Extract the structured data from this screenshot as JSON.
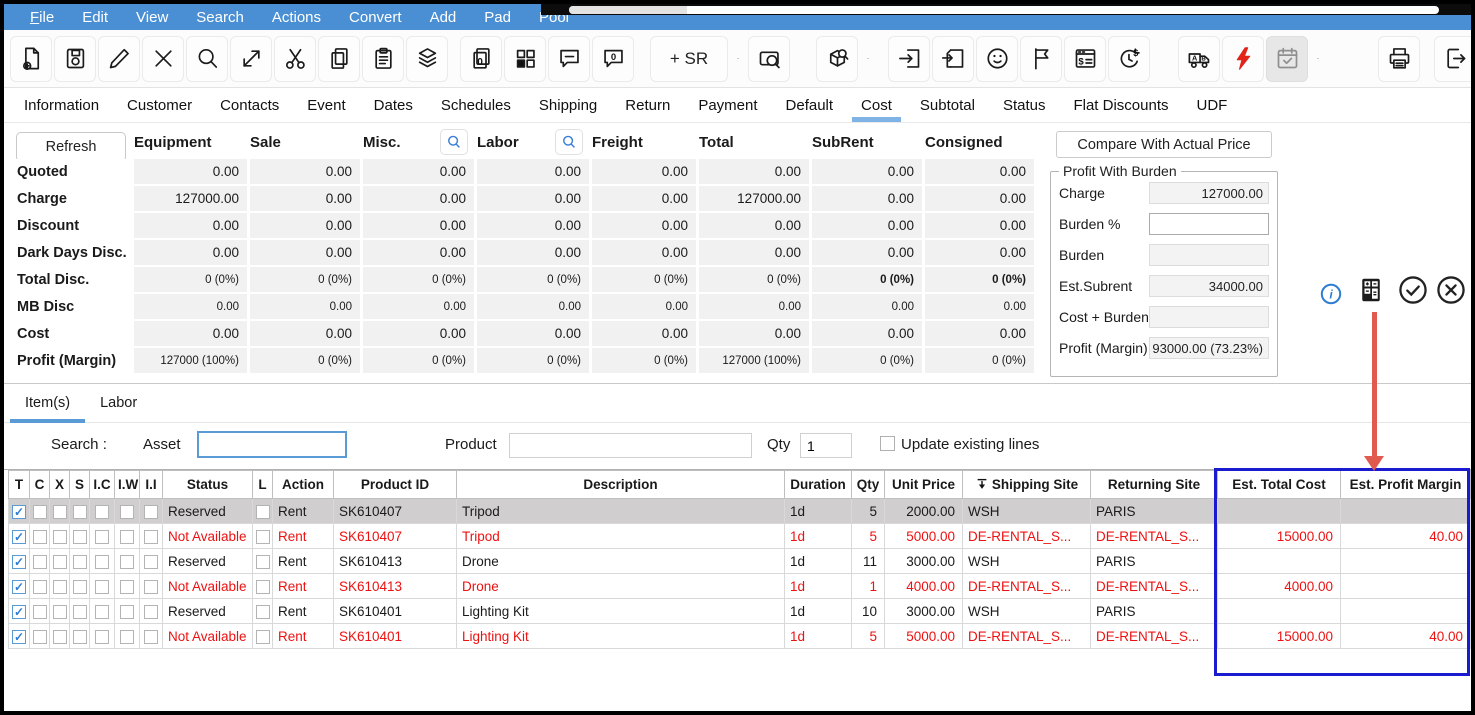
{
  "menu": {
    "items": [
      "File",
      "Edit",
      "View",
      "Search",
      "Actions",
      "Convert",
      "Add",
      "Pad",
      "Pool"
    ]
  },
  "toolbar": {
    "add_sr_label": "+ SR",
    "buttons": [
      "new-document",
      "save",
      "edit",
      "delete",
      "search",
      "expand",
      "cut",
      "copy",
      "paste",
      "layers",
      "duplicate-count",
      "layout-grid",
      "comment",
      "comment-count",
      "add-sr",
      "add-sr-chevron",
      "view-search",
      "box-search",
      "box-search-chevron",
      "return-document",
      "receive-box",
      "customer-smiley",
      "flag",
      "invoice-window",
      "time-money",
      "transfer-truck",
      "quick-lightning",
      "calendar-check",
      "calendar-chevron",
      "print",
      "exit"
    ]
  },
  "nav_tabs": {
    "items": [
      "Information",
      "Customer",
      "Contacts",
      "Event",
      "Dates",
      "Schedules",
      "Shipping",
      "Return",
      "Payment",
      "Default",
      "Cost",
      "Subtotal",
      "Status",
      "Flat Discounts",
      "UDF"
    ],
    "active": "Cost"
  },
  "cost_grid": {
    "refresh_label": "Refresh",
    "columns": [
      "Equipment",
      "Sale",
      "Misc.",
      "Labor",
      "Freight",
      "Total",
      "SubRent",
      "Consigned"
    ],
    "search_columns": [
      "Misc.",
      "Labor"
    ],
    "rows": [
      {
        "label": "Quoted",
        "values": [
          "0.00",
          "0.00",
          "0.00",
          "0.00",
          "0.00",
          "0.00",
          "0.00",
          "0.00"
        ]
      },
      {
        "label": "Charge",
        "values": [
          "127000.00",
          "0.00",
          "0.00",
          "0.00",
          "0.00",
          "127000.00",
          "0.00",
          "0.00"
        ]
      },
      {
        "label": "Discount",
        "values": [
          "0.00",
          "0.00",
          "0.00",
          "0.00",
          "0.00",
          "0.00",
          "0.00",
          "0.00"
        ]
      },
      {
        "label": "Dark Days Disc.",
        "values": [
          "0.00",
          "0.00",
          "0.00",
          "0.00",
          "0.00",
          "0.00",
          "0.00",
          "0.00"
        ]
      },
      {
        "label": "Total Disc.",
        "values": [
          "0 (0%)",
          "0 (0%)",
          "0 (0%)",
          "0 (0%)",
          "0 (0%)",
          "0 (0%)",
          "0 (0%)",
          "0 (0%)"
        ],
        "small": true,
        "bold_cols": [
          6,
          7
        ]
      },
      {
        "label": "MB Disc",
        "values": [
          "0.00",
          "0.00",
          "0.00",
          "0.00",
          "0.00",
          "0.00",
          "0.00",
          "0.00"
        ],
        "small": true
      },
      {
        "label": "Cost",
        "values": [
          "0.00",
          "0.00",
          "0.00",
          "0.00",
          "0.00",
          "0.00",
          "0.00",
          "0.00"
        ]
      },
      {
        "label": "Profit (Margin)",
        "values": [
          "127000 (100%)",
          "0 (0%)",
          "0 (0%)",
          "0 (0%)",
          "0 (0%)",
          "127000 (100%)",
          "0 (0%)",
          "0 (0%)"
        ],
        "small": true
      }
    ]
  },
  "burden_panel": {
    "compare_button": "Compare With Actual Price",
    "title": "Profit With Burden",
    "fields": [
      {
        "label": "Charge",
        "value": "127000.00",
        "editable": false
      },
      {
        "label": "Burden %",
        "value": "",
        "editable": true
      },
      {
        "label": "Burden",
        "value": "",
        "editable": false
      },
      {
        "label": "Est.Subrent",
        "value": "34000.00",
        "editable": false
      },
      {
        "label": "Cost + Burden",
        "value": "",
        "editable": false
      },
      {
        "label": "Profit (Margin)",
        "value": "93000.00 (73.23%)",
        "editable": false
      }
    ],
    "icons": [
      "info-icon",
      "calculator-icon",
      "approve-icon",
      "cancel-icon"
    ]
  },
  "detail_tabs": {
    "items": [
      "Item(s)",
      "Labor"
    ],
    "active": "Item(s)"
  },
  "search_bar": {
    "search_label": "Search :",
    "asset_label": "Asset",
    "asset_value": "",
    "product_label": "Product",
    "product_value": "",
    "qty_label": "Qty",
    "qty_value": "1",
    "update_label": "Update existing lines",
    "update_checked": false
  },
  "items_table": {
    "columns": [
      "T",
      "C",
      "X",
      "S",
      "I.C",
      "I.W",
      "I.I",
      "Status",
      "L",
      "Action",
      "Product ID",
      "Description",
      "Duration",
      "Qty",
      "Unit Price",
      "Shipping Site",
      "Returning Site",
      "Est. Total Cost",
      "Est. Profit Margin"
    ],
    "rows": [
      {
        "checked": true,
        "status": "Reserved",
        "action": "Rent",
        "product_id": "SK610407",
        "description": "Tripod",
        "duration": "1d",
        "qty": "5",
        "unit_price": "2000.00",
        "shipping_site": "WSH",
        "returning_site": "PARIS",
        "est_total_cost": "",
        "est_profit_margin": "",
        "state": "selected"
      },
      {
        "checked": true,
        "status": "Not Available",
        "action": "Rent",
        "product_id": "SK610407",
        "description": "Tripod",
        "duration": "1d",
        "qty": "5",
        "unit_price": "5000.00",
        "shipping_site": "DE-RENTAL_S...",
        "returning_site": "DE-RENTAL_S...",
        "est_total_cost": "15000.00",
        "est_profit_margin": "40.00",
        "state": "unavailable"
      },
      {
        "checked": true,
        "status": "Reserved",
        "action": "Rent",
        "product_id": "SK610413",
        "description": "Drone",
        "duration": "1d",
        "qty": "11",
        "unit_price": "3000.00",
        "shipping_site": "WSH",
        "returning_site": "PARIS",
        "est_total_cost": "",
        "est_profit_margin": "",
        "state": "normal"
      },
      {
        "checked": true,
        "status": "Not Available",
        "action": "Rent",
        "product_id": "SK610413",
        "description": "Drone",
        "duration": "1d",
        "qty": "1",
        "unit_price": "4000.00",
        "shipping_site": "DE-RENTAL_S...",
        "returning_site": "DE-RENTAL_S...",
        "est_total_cost": "4000.00",
        "est_profit_margin": "",
        "state": "unavailable"
      },
      {
        "checked": true,
        "status": "Reserved",
        "action": "Rent",
        "product_id": "SK610401",
        "description": "Lighting Kit",
        "duration": "1d",
        "qty": "10",
        "unit_price": "3000.00",
        "shipping_site": "WSH",
        "returning_site": "PARIS",
        "est_total_cost": "",
        "est_profit_margin": "",
        "state": "normal"
      },
      {
        "checked": true,
        "status": "Not Available",
        "action": "Rent",
        "product_id": "SK610401",
        "description": "Lighting Kit",
        "duration": "1d",
        "qty": "5",
        "unit_price": "5000.00",
        "shipping_site": "DE-RENTAL_S...",
        "returning_site": "DE-RENTAL_S...",
        "est_total_cost": "15000.00",
        "est_profit_margin": "40.00",
        "state": "unavailable"
      }
    ]
  },
  "colors": {
    "menu_bar_blue": "#4a8fd3",
    "tab_accent_blue": "#7fb2e5",
    "detail_tab_blue": "#5b9bd5",
    "alert_red": "#ee1111",
    "highlight_box_blue": "#1a1ace",
    "arrow_red": "#e05a50",
    "info_blue": "#2d7dd2",
    "selected_row_grey": "#d0cece"
  }
}
